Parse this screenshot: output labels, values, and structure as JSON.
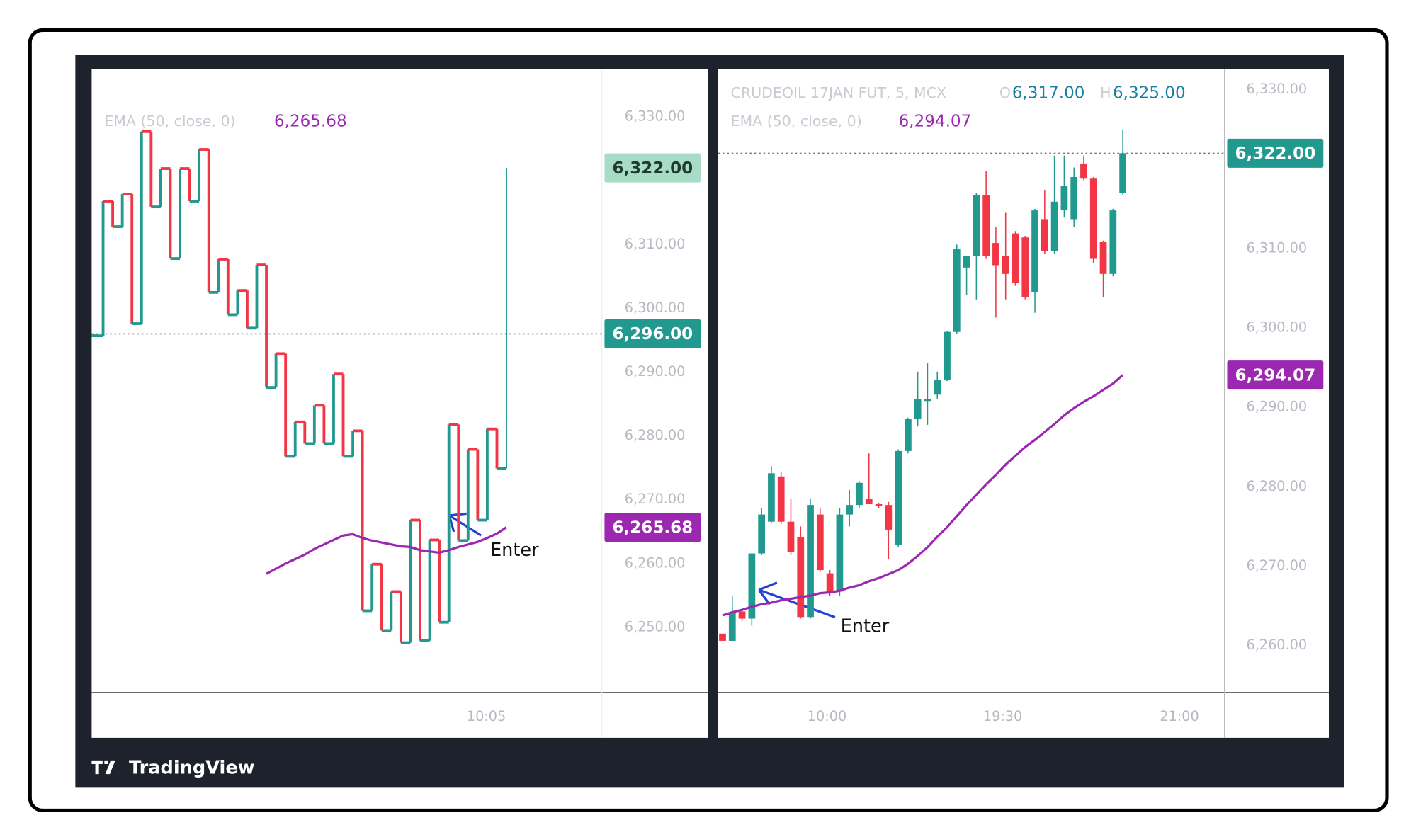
{
  "chart_data": [
    {
      "type": "kagi",
      "indicator": "EMA (50, close, 0)",
      "indicator_value": "6,265.68",
      "ylim": [
        6239.8,
        6337.5
      ],
      "yticks": [
        {
          "value": 6250,
          "label": "6,250.00"
        },
        {
          "value": 6260,
          "label": "6,260.00"
        },
        {
          "value": 6270,
          "label": "6,270.00"
        },
        {
          "value": 6280,
          "label": "6,280.00"
        },
        {
          "value": 6290,
          "label": "6,290.00"
        },
        {
          "value": 6300,
          "label": "6,300.00"
        },
        {
          "value": 6310,
          "label": "6,310.00"
        },
        {
          "value": 6330,
          "label": "6,330.00"
        }
      ],
      "xticks": [
        {
          "value": 40.9,
          "label": "10:05"
        }
      ],
      "up_color": "#22998e",
      "down_color": "#f23645",
      "values": [
        6295.7,
        6316.8,
        6312.8,
        6317.9,
        6297.6,
        6327.7,
        6315.9,
        6321.9,
        6307.8,
        6321.9,
        6316.8,
        6324.9,
        6302.5,
        6307.7,
        6299.0,
        6302.8,
        6296.9,
        6306.8,
        6287.6,
        6292.9,
        6276.8,
        6282.2,
        6278.8,
        6284.8,
        6278.8,
        6289.7,
        6276.8,
        6280.8,
        6252.6,
        6259.9,
        6249.5,
        6255.6,
        6247.6,
        6266.8,
        6247.9,
        6263.7,
        6250.8,
        6281.8,
        6263.6,
        6277.9,
        6266.8,
        6281.1,
        6274.9,
        6322.0
      ],
      "ema": {
        "color": "#9c27b0",
        "values": [
          null,
          null,
          null,
          null,
          null,
          null,
          null,
          null,
          null,
          null,
          null,
          null,
          null,
          null,
          null,
          null,
          null,
          null,
          6258.4,
          6259.2,
          6260.0,
          6260.7,
          6261.4,
          6262.3,
          6263.0,
          6263.7,
          6264.4,
          6264.6,
          6264.0,
          6263.6,
          6263.3,
          6263.0,
          6262.7,
          6262.6,
          6262.1,
          6261.9,
          6261.7,
          6262.1,
          6262.6,
          6263.0,
          6263.4,
          6264.0,
          6264.7,
          6265.68
        ]
      },
      "price_labels": [
        {
          "value": 6322,
          "label": "6,322.00",
          "color": "#a9dcc6",
          "text_color": "#1d3b30"
        },
        {
          "value": 6296,
          "label": "6,296.00",
          "color": "#22998e",
          "text_color": "#ffffff",
          "line": "dotted"
        },
        {
          "value": 6265.68,
          "label": "6,265.68",
          "color": "#9c27b0",
          "text_color": "#ffffff"
        }
      ],
      "annotation": "Enter"
    },
    {
      "type": "candlestick",
      "symbol": "CRUDEOIL 17JAN FUT, 5, MCX",
      "ohlc_legend": [
        {
          "key": "O",
          "text": "6,317.00"
        },
        {
          "key": "H",
          "text": "6,325.00"
        }
      ],
      "indicator": "EMA (50, close, 0)",
      "indicator_value": "6,294.07",
      "ylim": [
        6254.1,
        6332.6
      ],
      "yticks": [
        {
          "value": 6260,
          "label": "6,260.00"
        },
        {
          "value": 6270,
          "label": "6,270.00"
        },
        {
          "value": 6280,
          "label": "6,280.00"
        },
        {
          "value": 6290,
          "label": "6,290.00"
        },
        {
          "value": 6300,
          "label": "6,300.00"
        },
        {
          "value": 6310,
          "label": "6,310.00"
        },
        {
          "value": 6330,
          "label": "6,330.00"
        }
      ],
      "xticks": [
        {
          "value": 10.7,
          "label": "10:00"
        },
        {
          "value": 28.7,
          "label": "19:30"
        },
        {
          "value": 46.8,
          "label": "21:00"
        }
      ],
      "up_color": "#22998e",
      "down_color": "#f23645",
      "open": [
        6261.5,
        6260.6,
        6264.3,
        6263.4,
        6271.6,
        6275.6,
        6281.3,
        6275.6,
        6273.7,
        6263.6,
        6276.5,
        6269.1,
        6266.8,
        6276.5,
        6277.7,
        6278.5,
        6277.8,
        6277.7,
        6272.7,
        6284.5,
        6288.5,
        6290.8,
        6291.6,
        6293.5,
        6299.5,
        6307.6,
        6309.1,
        6316.7,
        6310.7,
        6309.1,
        6311.9,
        6311.4,
        6304.5,
        6313.7,
        6309.7,
        6314.8,
        6313.7,
        6320.7,
        6318.8,
        6310.8,
        6306.8,
        6317.0
      ],
      "high": [
        6261.5,
        6266.3,
        6264.5,
        6271.6,
        6277.3,
        6282.6,
        6281.9,
        6278.5,
        6275.0,
        6278.5,
        6277.3,
        6269.5,
        6277.3,
        6279.6,
        6280.7,
        6284.2,
        6277.9,
        6278.1,
        6284.7,
        6288.7,
        6294.5,
        6295.6,
        6294.5,
        6299.6,
        6310.5,
        6309.1,
        6317.0,
        6319.8,
        6312.7,
        6314.5,
        6312.2,
        6311.6,
        6315.0,
        6317.3,
        6321.7,
        6321.7,
        6320.2,
        6321.7,
        6319.0,
        6311.0,
        6315.0,
        6325.0
      ],
      "low": [
        6260.6,
        6260.6,
        6263.1,
        6262.5,
        6271.4,
        6275.4,
        6275.3,
        6271.4,
        6263.4,
        6263.4,
        6269.3,
        6266.3,
        6266.3,
        6275.0,
        6277.3,
        6278.1,
        6277.3,
        6270.9,
        6272.4,
        6284.2,
        6287.6,
        6287.8,
        6291.0,
        6293.3,
        6299.3,
        6304.2,
        6303.6,
        6308.7,
        6301.3,
        6303.6,
        6305.3,
        6303.6,
        6301.9,
        6309.3,
        6309.3,
        6313.9,
        6312.7,
        6318.6,
        6308.2,
        6303.9,
        6306.5,
        6316.7
      ],
      "close": [
        6260.6,
        6264.1,
        6263.4,
        6271.6,
        6276.5,
        6281.7,
        6275.6,
        6271.8,
        6263.6,
        6277.7,
        6269.5,
        6266.8,
        6276.5,
        6277.7,
        6280.5,
        6277.8,
        6277.7,
        6274.6,
        6284.5,
        6288.5,
        6291.0,
        6291.0,
        6293.5,
        6299.5,
        6309.9,
        6309.1,
        6316.7,
        6309.1,
        6307.9,
        6306.8,
        6305.7,
        6303.9,
        6314.8,
        6309.7,
        6315.9,
        6317.9,
        6319.0,
        6318.8,
        6308.7,
        6306.8,
        6314.8,
        6322.0
      ],
      "ema": {
        "color": "#9c27b0",
        "values": [
          6263.8,
          6264.2,
          6264.5,
          6264.9,
          6265.2,
          6265.4,
          6265.7,
          6265.9,
          6266.1,
          6266.3,
          6266.6,
          6266.7,
          6266.9,
          6267.3,
          6267.6,
          6268.1,
          6268.5,
          6269.0,
          6269.5,
          6270.3,
          6271.3,
          6272.4,
          6273.7,
          6274.9,
          6276.3,
          6277.7,
          6279.0,
          6280.3,
          6281.5,
          6282.8,
          6283.9,
          6285.0,
          6285.9,
          6286.9,
          6287.9,
          6289.0,
          6289.9,
          6290.7,
          6291.4,
          6292.2,
          6293.0,
          6294.07
        ]
      },
      "price_labels": [
        {
          "value": 6322,
          "label": "6,322.00",
          "color": "#22998e",
          "text_color": "#ffffff",
          "line": "dotted"
        },
        {
          "value": 6294.07,
          "label": "6,294.07",
          "color": "#9c27b0",
          "text_color": "#ffffff"
        }
      ],
      "annotation": "Enter"
    }
  ],
  "branding": "TradingView"
}
